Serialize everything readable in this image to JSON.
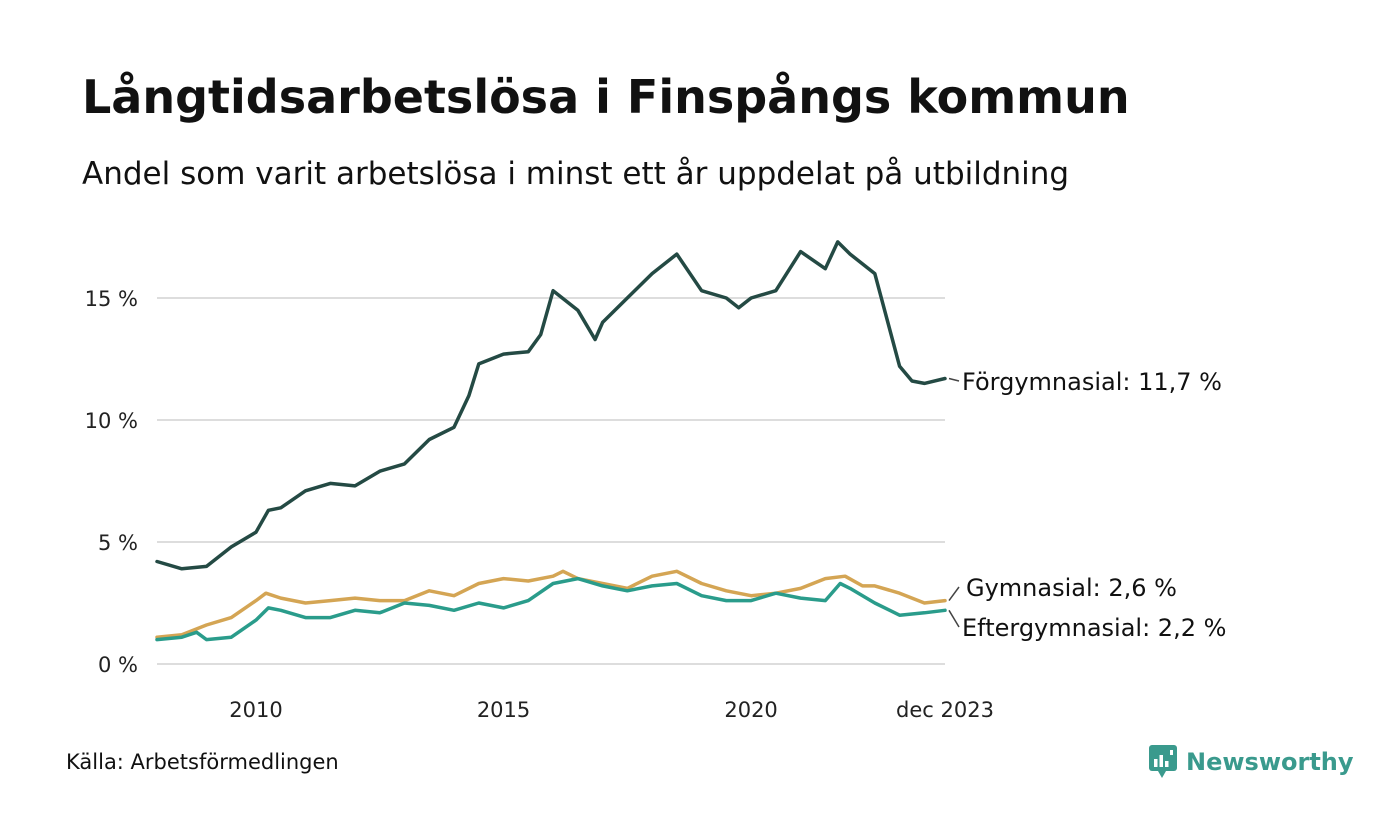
{
  "header": {
    "title": "Långtidsarbetslösa i Finspångs kommun",
    "subtitle": "Andel som varit arbetslösa i minst ett år uppdelat på utbildning"
  },
  "footer": {
    "source": "Källa: Arbetsförmedlingen",
    "brand": "Newsworthy",
    "brand_icon": "newsworthy-chart-icon"
  },
  "colors": {
    "forgymnasial": "#244a44",
    "gymnasial": "#d4a554",
    "eftergymnasial": "#2a9c8b",
    "grid": "#dddddd",
    "brand": "#3a9a8d"
  },
  "chart_data": {
    "type": "line",
    "title": "Långtidsarbetslösa i Finspångs kommun",
    "subtitle": "Andel som varit arbetslösa i minst ett år uppdelat på utbildning",
    "xlabel": "",
    "ylabel": "",
    "x_range": [
      2008.0,
      2023.917
    ],
    "ylim": [
      0,
      17.5
    ],
    "y_ticks": [
      0,
      5,
      10,
      15
    ],
    "y_tick_labels": [
      "0 %",
      "5 %",
      "10 %",
      "15 %"
    ],
    "x_ticks": [
      2010,
      2015,
      2020,
      2023.917
    ],
    "x_tick_labels": [
      "2010",
      "2015",
      "2020",
      "dec 2023"
    ],
    "grid": true,
    "series": [
      {
        "key": "forgymnasial",
        "name": "Förgymnasial",
        "end_label": "Förgymnasial: 11,7 %",
        "points": [
          [
            2008.0,
            4.2
          ],
          [
            2008.5,
            3.9
          ],
          [
            2009.0,
            4.0
          ],
          [
            2009.5,
            4.8
          ],
          [
            2010.0,
            5.4
          ],
          [
            2010.25,
            6.3
          ],
          [
            2010.5,
            6.4
          ],
          [
            2011.0,
            7.1
          ],
          [
            2011.5,
            7.4
          ],
          [
            2012.0,
            7.3
          ],
          [
            2012.5,
            7.9
          ],
          [
            2013.0,
            8.2
          ],
          [
            2013.5,
            9.2
          ],
          [
            2014.0,
            9.7
          ],
          [
            2014.3,
            11.0
          ],
          [
            2014.5,
            12.3
          ],
          [
            2015.0,
            12.7
          ],
          [
            2015.5,
            12.8
          ],
          [
            2015.75,
            13.5
          ],
          [
            2016.0,
            15.3
          ],
          [
            2016.5,
            14.5
          ],
          [
            2016.85,
            13.3
          ],
          [
            2017.0,
            14.0
          ],
          [
            2017.5,
            15.0
          ],
          [
            2018.0,
            16.0
          ],
          [
            2018.5,
            16.8
          ],
          [
            2019.0,
            15.3
          ],
          [
            2019.5,
            15.0
          ],
          [
            2019.75,
            14.6
          ],
          [
            2020.0,
            15.0
          ],
          [
            2020.5,
            15.3
          ],
          [
            2021.0,
            16.9
          ],
          [
            2021.5,
            16.2
          ],
          [
            2021.75,
            17.3
          ],
          [
            2022.0,
            16.8
          ],
          [
            2022.5,
            16.0
          ],
          [
            2023.0,
            12.2
          ],
          [
            2023.25,
            11.6
          ],
          [
            2023.5,
            11.5
          ],
          [
            2023.917,
            11.7
          ]
        ]
      },
      {
        "key": "gymnasial",
        "name": "Gymnasial",
        "end_label": "Gymnasial:  2,6 %",
        "points": [
          [
            2008.0,
            1.1
          ],
          [
            2008.5,
            1.2
          ],
          [
            2009.0,
            1.6
          ],
          [
            2009.5,
            1.9
          ],
          [
            2010.0,
            2.6
          ],
          [
            2010.2,
            2.9
          ],
          [
            2010.5,
            2.7
          ],
          [
            2011.0,
            2.5
          ],
          [
            2011.5,
            2.6
          ],
          [
            2012.0,
            2.7
          ],
          [
            2012.5,
            2.6
          ],
          [
            2013.0,
            2.6
          ],
          [
            2013.5,
            3.0
          ],
          [
            2014.0,
            2.8
          ],
          [
            2014.5,
            3.3
          ],
          [
            2015.0,
            3.5
          ],
          [
            2015.5,
            3.4
          ],
          [
            2016.0,
            3.6
          ],
          [
            2016.2,
            3.8
          ],
          [
            2016.5,
            3.5
          ],
          [
            2017.0,
            3.3
          ],
          [
            2017.5,
            3.1
          ],
          [
            2018.0,
            3.6
          ],
          [
            2018.5,
            3.8
          ],
          [
            2019.0,
            3.3
          ],
          [
            2019.5,
            3.0
          ],
          [
            2020.0,
            2.8
          ],
          [
            2020.5,
            2.9
          ],
          [
            2021.0,
            3.1
          ],
          [
            2021.5,
            3.5
          ],
          [
            2021.9,
            3.6
          ],
          [
            2022.25,
            3.2
          ],
          [
            2022.5,
            3.2
          ],
          [
            2023.0,
            2.9
          ],
          [
            2023.5,
            2.5
          ],
          [
            2023.917,
            2.6
          ]
        ]
      },
      {
        "key": "eftergymnasial",
        "name": "Eftergymnasial",
        "end_label": "Eftergymnasial:  2,2 %",
        "points": [
          [
            2008.0,
            1.0
          ],
          [
            2008.5,
            1.1
          ],
          [
            2008.8,
            1.3
          ],
          [
            2009.0,
            1.0
          ],
          [
            2009.5,
            1.1
          ],
          [
            2010.0,
            1.8
          ],
          [
            2010.25,
            2.3
          ],
          [
            2010.5,
            2.2
          ],
          [
            2011.0,
            1.9
          ],
          [
            2011.5,
            1.9
          ],
          [
            2012.0,
            2.2
          ],
          [
            2012.5,
            2.1
          ],
          [
            2013.0,
            2.5
          ],
          [
            2013.5,
            2.4
          ],
          [
            2014.0,
            2.2
          ],
          [
            2014.5,
            2.5
          ],
          [
            2015.0,
            2.3
          ],
          [
            2015.5,
            2.6
          ],
          [
            2016.0,
            3.3
          ],
          [
            2016.5,
            3.5
          ],
          [
            2017.0,
            3.2
          ],
          [
            2017.5,
            3.0
          ],
          [
            2018.0,
            3.2
          ],
          [
            2018.5,
            3.3
          ],
          [
            2019.0,
            2.8
          ],
          [
            2019.5,
            2.6
          ],
          [
            2020.0,
            2.6
          ],
          [
            2020.5,
            2.9
          ],
          [
            2021.0,
            2.7
          ],
          [
            2021.5,
            2.6
          ],
          [
            2021.8,
            3.3
          ],
          [
            2022.0,
            3.1
          ],
          [
            2022.5,
            2.5
          ],
          [
            2023.0,
            2.0
          ],
          [
            2023.5,
            2.1
          ],
          [
            2023.917,
            2.2
          ]
        ]
      }
    ]
  }
}
